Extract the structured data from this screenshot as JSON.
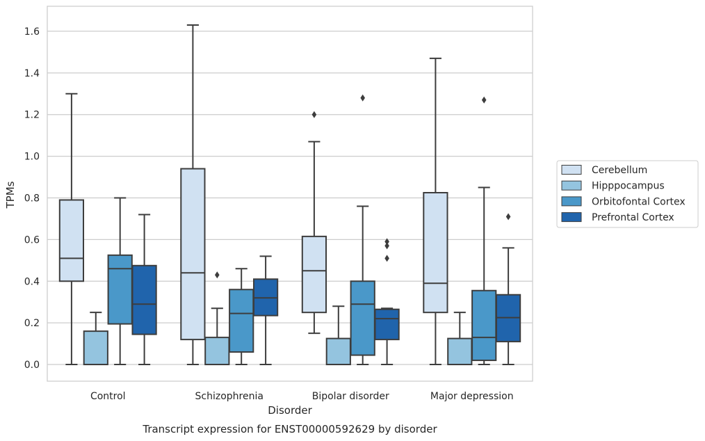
{
  "chart_data": {
    "type": "box",
    "xlabel": "Disorder",
    "ylabel": "TPMs",
    "caption": "Transcript expression for ENST00000592629 by disorder",
    "ylim": [
      -0.08,
      1.72
    ],
    "yticks": [
      "0.0",
      "0.2",
      "0.4",
      "0.6",
      "0.8",
      "1.0",
      "1.2",
      "1.4",
      "1.6"
    ],
    "ytick_values": [
      0,
      0.2,
      0.4,
      0.6,
      0.8,
      1.0,
      1.2,
      1.4,
      1.6
    ],
    "grid": "horizontal",
    "legend_placement": "right",
    "categories": [
      "Control",
      "Schizophrenia",
      "Bipolar disorder",
      "Major depression"
    ],
    "series": [
      {
        "name": "Cerebellum",
        "color": "#d0e1f2",
        "boxes": [
          {
            "whislo": 0,
            "q1": 0.4,
            "med": 0.51,
            "q3": 0.79,
            "whishi": 1.3,
            "fliers": []
          },
          {
            "whislo": 0,
            "q1": 0.12,
            "med": 0.44,
            "q3": 0.94,
            "whishi": 1.63,
            "fliers": []
          },
          {
            "whislo": 0.15,
            "q1": 0.25,
            "med": 0.45,
            "q3": 0.615,
            "whishi": 1.07,
            "fliers": [
              1.2
            ]
          },
          {
            "whislo": 0,
            "q1": 0.25,
            "med": 0.39,
            "q3": 0.825,
            "whishi": 1.47,
            "fliers": []
          }
        ]
      },
      {
        "name": "Hipppocampus",
        "color": "#94c4df",
        "boxes": [
          {
            "whislo": 0,
            "q1": 0,
            "med": 0,
            "q3": 0.16,
            "whishi": 0.25,
            "fliers": []
          },
          {
            "whislo": 0,
            "q1": 0,
            "med": 0,
            "q3": 0.13,
            "whishi": 0.27,
            "fliers": [
              0.43
            ]
          },
          {
            "whislo": 0,
            "q1": 0,
            "med": 0,
            "q3": 0.125,
            "whishi": 0.28,
            "fliers": []
          },
          {
            "whislo": 0,
            "q1": 0,
            "med": 0,
            "q3": 0.125,
            "whishi": 0.25,
            "fliers": []
          }
        ]
      },
      {
        "name": "Orbitofontal Cortex",
        "color": "#4a98c9",
        "boxes": [
          {
            "whislo": 0,
            "q1": 0.195,
            "med": 0.46,
            "q3": 0.525,
            "whishi": 0.8,
            "fliers": []
          },
          {
            "whislo": 0,
            "q1": 0.06,
            "med": 0.245,
            "q3": 0.36,
            "whishi": 0.46,
            "fliers": []
          },
          {
            "whislo": 0,
            "q1": 0.045,
            "med": 0.29,
            "q3": 0.4,
            "whishi": 0.76,
            "fliers": [
              1.28
            ]
          },
          {
            "whislo": 0,
            "q1": 0.02,
            "med": 0.13,
            "q3": 0.355,
            "whishi": 0.85,
            "fliers": [
              1.27
            ]
          }
        ]
      },
      {
        "name": "Prefrontal Cortex",
        "color": "#2064ac",
        "boxes": [
          {
            "whislo": 0,
            "q1": 0.145,
            "med": 0.29,
            "q3": 0.475,
            "whishi": 0.72,
            "fliers": []
          },
          {
            "whislo": 0,
            "q1": 0.235,
            "med": 0.32,
            "q3": 0.41,
            "whishi": 0.52,
            "fliers": []
          },
          {
            "whislo": 0,
            "q1": 0.12,
            "med": 0.22,
            "q3": 0.265,
            "whishi": 0.27,
            "fliers": [
              0.51,
              0.57,
              0.59
            ]
          },
          {
            "whislo": 0,
            "q1": 0.11,
            "med": 0.225,
            "q3": 0.335,
            "whishi": 0.56,
            "fliers": [
              0.71
            ]
          }
        ]
      }
    ]
  }
}
